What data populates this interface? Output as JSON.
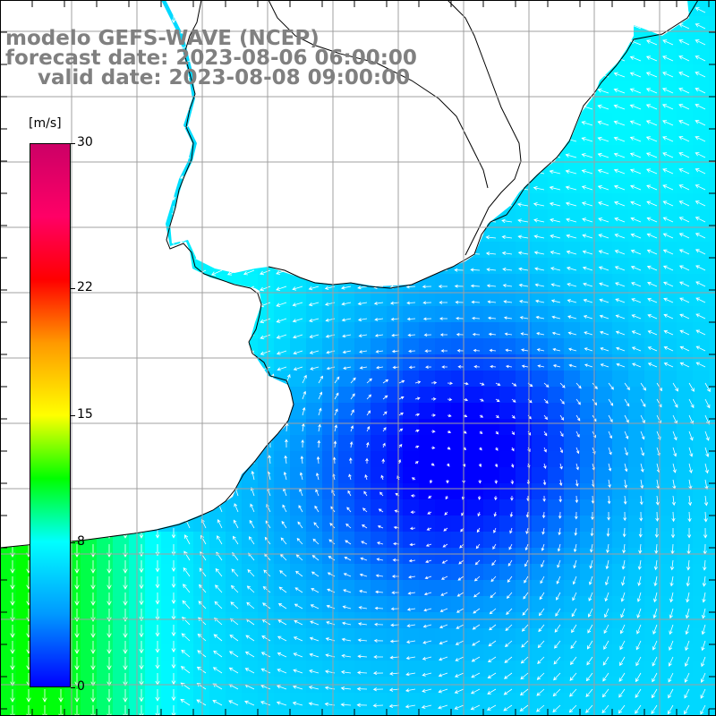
{
  "title": {
    "line1": "modelo GEFS-WAVE (NCEP)",
    "line2": "forecast date: 2023-08-06 06:00:00",
    "line3": "valid date: 2023-08-08 09:00:00"
  },
  "colorbar": {
    "unit": "[m/s]",
    "min": 0,
    "max": 30,
    "ticks": [
      "30",
      "22",
      "15",
      "8",
      "0"
    ],
    "tick_values": [
      30,
      22,
      15,
      8,
      0
    ],
    "stops": [
      {
        "value": 0,
        "color": "#0000ff"
      },
      {
        "value": 4,
        "color": "#0099ff"
      },
      {
        "value": 8,
        "color": "#00ffff"
      },
      {
        "value": 11.5,
        "color": "#00ff00"
      },
      {
        "value": 15,
        "color": "#ffff00"
      },
      {
        "value": 19,
        "color": "#ff9900"
      },
      {
        "value": 22.5,
        "color": "#ff0000"
      },
      {
        "value": 26,
        "color": "#ff0066"
      },
      {
        "value": 30,
        "color": "#cc0066"
      }
    ]
  },
  "map": {
    "variable": "wind speed and direction",
    "land_color": "#ffffff",
    "grid_color": "#a0a0a0",
    "arrow_color": "#ffffff"
  }
}
